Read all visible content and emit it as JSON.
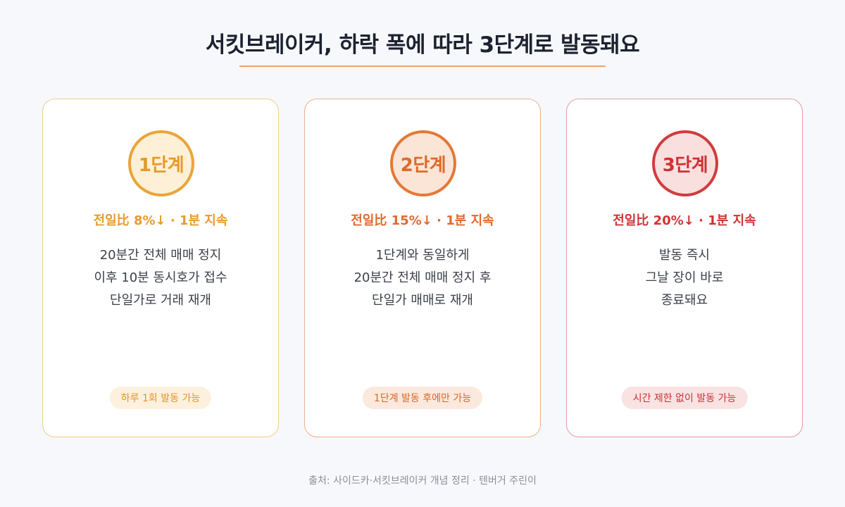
{
  "title": "서킷브레이커, 하락 폭에 따라 3단계로 발동돼요",
  "colors": {
    "stage1": "#e89b2c",
    "stage2": "#e06a30",
    "stage3": "#cf3336",
    "title_rule": "#e8a46c"
  },
  "stages": [
    {
      "badge": "1단계",
      "condition": "전일比 8%↓ · 1분 지속",
      "lines": [
        "20분간 전체 매매 정지",
        "이후 10분 동시호가 접수",
        "단일가로 거래 재개"
      ],
      "note": "하루 1회 발동 가능"
    },
    {
      "badge": "2단계",
      "condition": "전일比 15%↓ · 1분 지속",
      "lines": [
        "1단계와 동일하게",
        "20분간 전체 매매 정지 후",
        "단일가 매매로 재개"
      ],
      "note": "1단계 발동 후에만 가능"
    },
    {
      "badge": "3단계",
      "condition": "전일比 20%↓ · 1분 지속",
      "lines": [
        "발동 즉시",
        "그날 장이 바로",
        "종료돼요"
      ],
      "note": "시간 제한 없이 발동 가능"
    }
  ],
  "source": "출처: 사이드카·서킷브레이커 개념 정리 · 텐버거 주린이"
}
